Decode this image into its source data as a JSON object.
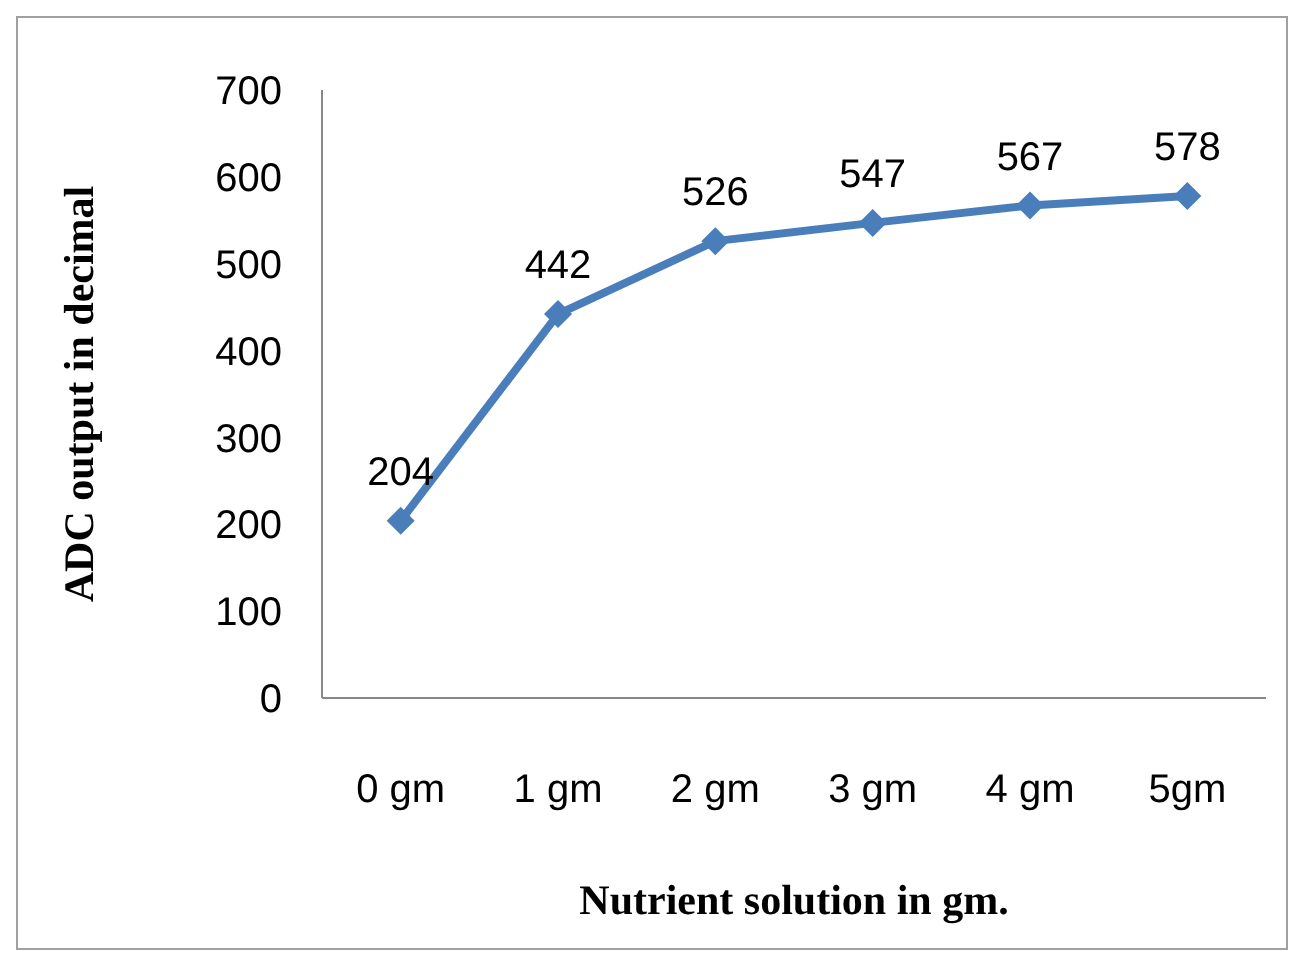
{
  "chart_data": {
    "type": "line",
    "xlabel": "Nutrient solution in gm.",
    "ylabel": "ADC output in decimal",
    "categories": [
      "0 gm",
      "1 gm",
      "2 gm",
      "3 gm",
      "4 gm",
      "5gm"
    ],
    "series": [
      {
        "color": "#4a7ebb",
        "values": [
          204,
          442,
          526,
          547,
          567,
          578
        ]
      }
    ],
    "ylim": [
      0,
      700
    ],
    "yticks": [
      0,
      100,
      200,
      300,
      400,
      500,
      600,
      700
    ],
    "grid": false,
    "legend": false,
    "marker": "diamond",
    "line_style": "solid",
    "data_labels": true
  }
}
